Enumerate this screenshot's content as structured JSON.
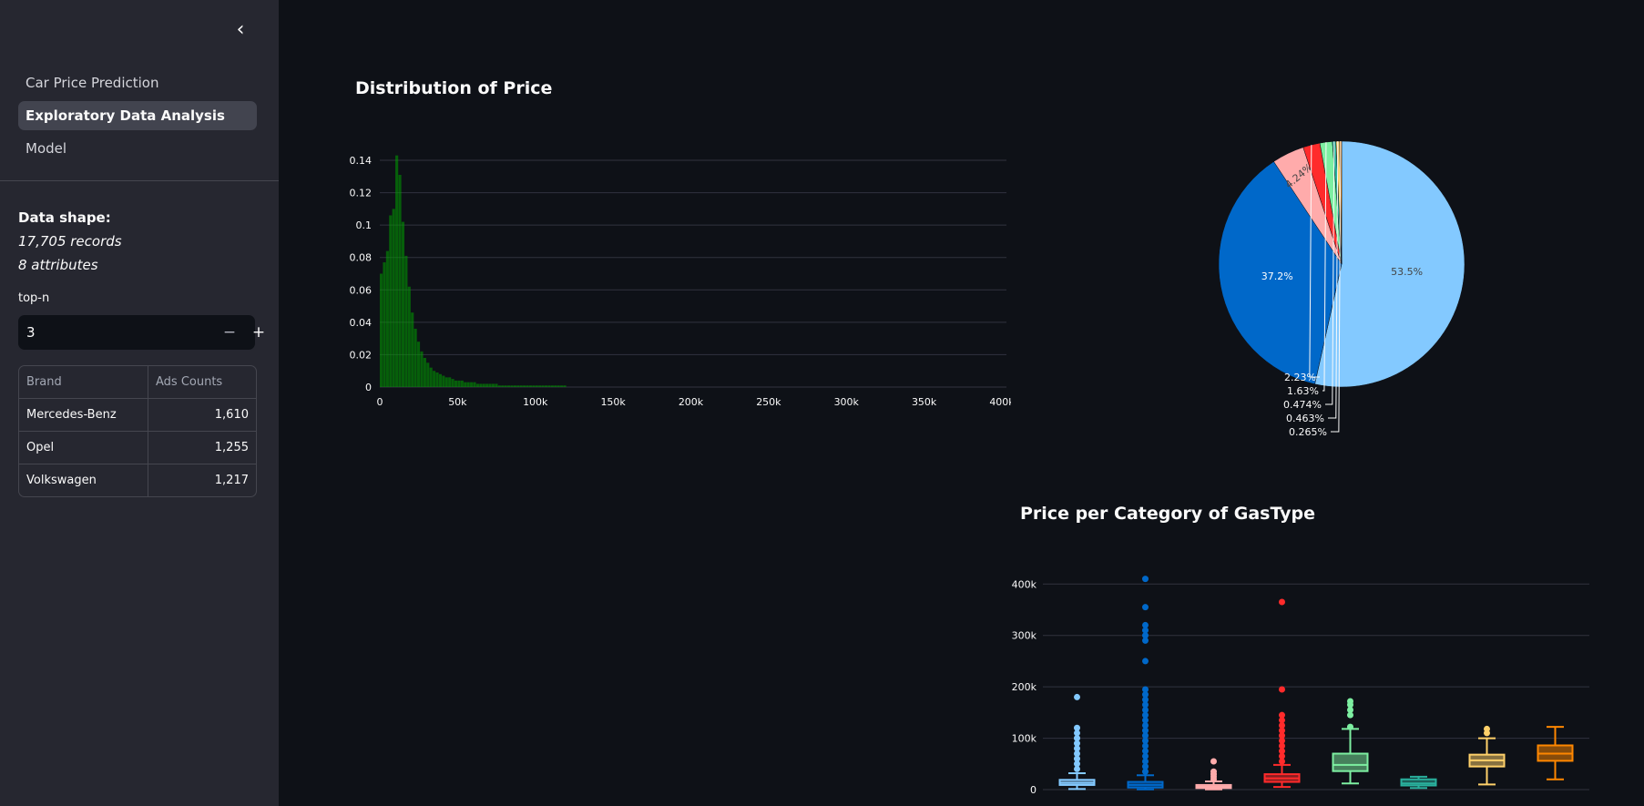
{
  "sidebar": {
    "nav_items": [
      {
        "label": "Car Price Prediction",
        "active": false
      },
      {
        "label": "Exploratory Data Analysis",
        "active": true
      },
      {
        "label": "Model",
        "active": false
      }
    ],
    "data_shape": {
      "title": "Data shape:",
      "records": "17,705 records",
      "attributes": "8 attributes"
    },
    "topn": {
      "label": "top-n",
      "value": "3",
      "minus": "−",
      "plus": "+"
    },
    "table": {
      "headers": [
        "Brand",
        "Ads Counts"
      ],
      "rows": [
        [
          "Mercedes-Benz",
          "1,610"
        ],
        [
          "Opel",
          "1,255"
        ],
        [
          "Volkswagen",
          "1,217"
        ]
      ]
    }
  },
  "icons": {
    "collapse": "chevron-left-icon"
  },
  "main": {
    "distribution_title": "Distribution of Price",
    "boxplot_title": "Price per Category of GasType"
  },
  "chart_data": [
    {
      "type": "bar",
      "title": "Distribution of Price",
      "xlim": [
        0,
        400000
      ],
      "ylim": [
        0,
        0.14
      ],
      "x_ticks": [
        "0",
        "50k",
        "100k",
        "150k",
        "200k",
        "250k",
        "300k",
        "350k",
        "400k"
      ],
      "y_ticks": [
        "0",
        "0.02",
        "0.04",
        "0.06",
        "0.08",
        "0.1",
        "0.12",
        "0.14"
      ],
      "bin_width": 2000,
      "values": [
        0.07,
        0.077,
        0.084,
        0.106,
        0.11,
        0.143,
        0.131,
        0.102,
        0.081,
        0.062,
        0.046,
        0.036,
        0.028,
        0.022,
        0.018,
        0.015,
        0.012,
        0.01,
        0.009,
        0.008,
        0.007,
        0.006,
        0.006,
        0.005,
        0.004,
        0.004,
        0.004,
        0.003,
        0.003,
        0.003,
        0.003,
        0.002,
        0.002,
        0.002,
        0.002,
        0.002,
        0.002,
        0.002,
        0.001,
        0.001,
        0.001,
        0.001,
        0.001,
        0.001,
        0.001,
        0.001,
        0.001,
        0.001,
        0.001,
        0.001,
        0.001,
        0.001,
        0.001,
        0.001,
        0.001,
        0.001,
        0.001,
        0.001,
        0.001,
        0.001
      ],
      "color": "#00a100",
      "grid": true
    },
    {
      "type": "pie",
      "values": [
        53.5,
        37.2,
        4.24,
        2.23,
        1.63,
        0.474,
        0.463,
        0.265
      ],
      "labels": [
        "53.5%",
        "37.2%",
        "4.24%",
        "2.23%",
        "1.63%",
        "0.474%",
        "0.463%",
        "0.265%"
      ],
      "colors": [
        "#83c9ff",
        "#0068c9",
        "#ffabab",
        "#ff2b2b",
        "#7defa1",
        "#29b09d",
        "#ffd16a",
        "#ff8700"
      ]
    },
    {
      "type": "box",
      "title": "Price per Category of GasType",
      "ylim": [
        0,
        420000
      ],
      "y_ticks": [
        "0",
        "100k",
        "200k",
        "300k",
        "400k"
      ],
      "y_tick_values": [
        0,
        100000,
        200000,
        300000,
        400000
      ],
      "series": [
        {
          "color": "#83c9ff",
          "min": 1000,
          "q1": 9000,
          "median": 13000,
          "q3": 19000,
          "max": 32000,
          "outliers": [
            40000,
            50000,
            60000,
            70000,
            80000,
            90000,
            100000,
            110000,
            120000,
            180000
          ]
        },
        {
          "color": "#0068c9",
          "min": 500,
          "q1": 4000,
          "median": 9000,
          "q3": 15000,
          "max": 28000,
          "outliers": [
            35000,
            45000,
            55000,
            65000,
            75000,
            85000,
            95000,
            105000,
            115000,
            125000,
            135000,
            145000,
            155000,
            165000,
            175000,
            185000,
            195000,
            250000,
            290000,
            300000,
            310000,
            320000,
            355000,
            410000
          ]
        },
        {
          "color": "#ffabab",
          "min": 500,
          "q1": 3000,
          "median": 5500,
          "q3": 9000,
          "max": 16000,
          "outliers": [
            20000,
            25000,
            30000,
            35000,
            55000
          ]
        },
        {
          "color": "#ff2b2b",
          "min": 5000,
          "q1": 15000,
          "median": 22000,
          "q3": 30000,
          "max": 48000,
          "outliers": [
            55000,
            65000,
            75000,
            85000,
            95000,
            105000,
            115000,
            125000,
            135000,
            145000,
            195000,
            365000
          ]
        },
        {
          "color": "#7defa1",
          "min": 12000,
          "q1": 36000,
          "median": 48000,
          "q3": 70000,
          "max": 118000,
          "outliers": [
            122000,
            145000,
            155000,
            165000,
            172000
          ]
        },
        {
          "color": "#29b09d",
          "min": 3000,
          "q1": 8000,
          "median": 12000,
          "q3": 20000,
          "max": 25000,
          "outliers": []
        },
        {
          "color": "#ffd16a",
          "min": 10000,
          "q1": 45000,
          "median": 57000,
          "q3": 68000,
          "max": 100000,
          "outliers": [
            110000,
            118000
          ]
        },
        {
          "color": "#ff8700",
          "min": 20000,
          "q1": 56000,
          "median": 70000,
          "q3": 86000,
          "max": 122000,
          "outliers": []
        }
      ],
      "grid": true
    }
  ]
}
